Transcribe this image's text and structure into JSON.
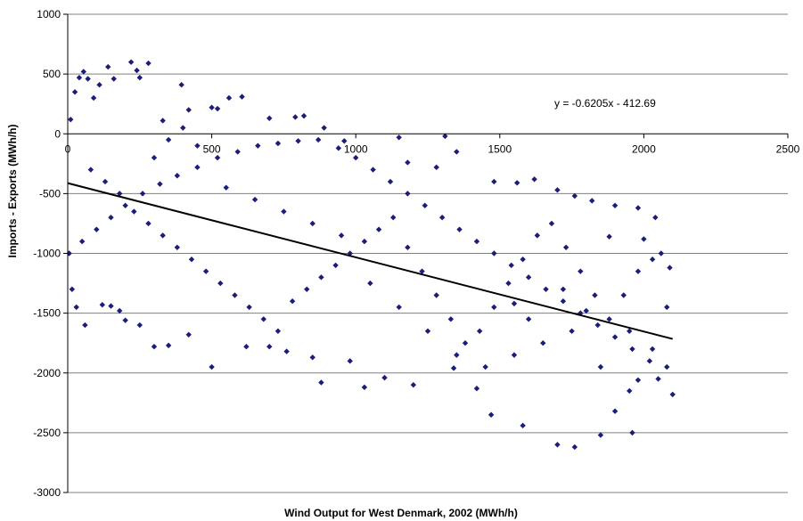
{
  "chart_data": {
    "type": "scatter",
    "title": "",
    "xlabel": "Wind Output for West Denmark, 2002 (MWh/h)",
    "ylabel": "Imports - Exports (MWh/h)",
    "xlim": [
      0,
      2500
    ],
    "ylim": [
      -3000,
      1000
    ],
    "x_ticks": [
      0,
      500,
      1000,
      1500,
      2000,
      2500
    ],
    "y_ticks": [
      1000,
      500,
      0,
      -500,
      -1000,
      -1500,
      -2000,
      -2500,
      -3000
    ],
    "x_tick_labels": [
      "0",
      "500",
      "1000",
      "1500",
      "2000",
      "2500"
    ],
    "y_tick_labels": [
      "1000",
      "500",
      "0",
      "-500",
      "-1000",
      "-1500",
      "-2000",
      "-2500",
      "-3000"
    ],
    "grid": "horizontal",
    "legend": "none",
    "marker_color": "#1c1c7a",
    "trendline_color": "#000000",
    "trendline": {
      "slope": -0.6205,
      "intercept": -412.69,
      "x_range": [
        0,
        2100
      ],
      "equation_label": "y = -0.6205x - 412.69"
    },
    "series": [
      {
        "points": [
          [
            10,
            120
          ],
          [
            25,
            350
          ],
          [
            40,
            470
          ],
          [
            55,
            520
          ],
          [
            70,
            460
          ],
          [
            90,
            300
          ],
          [
            110,
            410
          ],
          [
            140,
            560
          ],
          [
            160,
            460
          ],
          [
            220,
            600
          ],
          [
            240,
            530
          ],
          [
            250,
            470
          ],
          [
            280,
            590
          ],
          [
            330,
            110
          ],
          [
            395,
            410
          ],
          [
            420,
            200
          ],
          [
            500,
            220
          ],
          [
            520,
            210
          ],
          [
            560,
            300
          ],
          [
            605,
            310
          ],
          [
            700,
            130
          ],
          [
            790,
            140
          ],
          [
            820,
            150
          ],
          [
            890,
            50
          ],
          [
            960,
            -60
          ],
          [
            1150,
            -30
          ],
          [
            1310,
            -20
          ],
          [
            1180,
            -240
          ],
          [
            1280,
            -280
          ],
          [
            1350,
            -150
          ],
          [
            1480,
            -400
          ],
          [
            1560,
            -410
          ],
          [
            1620,
            -380
          ],
          [
            1700,
            -470
          ],
          [
            1760,
            -520
          ],
          [
            1820,
            -560
          ],
          [
            1900,
            -600
          ],
          [
            1980,
            -620
          ],
          [
            2040,
            -700
          ],
          [
            1880,
            -860
          ],
          [
            2000,
            -880
          ],
          [
            2060,
            -1000
          ],
          [
            2090,
            -1120
          ],
          [
            1550,
            -1420
          ],
          [
            1600,
            -1550
          ],
          [
            1720,
            -1300
          ],
          [
            1800,
            -1480
          ],
          [
            1950,
            -1650
          ],
          [
            2030,
            -1800
          ],
          [
            2080,
            -1950
          ],
          [
            2100,
            -2180
          ],
          [
            1980,
            -2060
          ],
          [
            1900,
            -2320
          ],
          [
            1850,
            -2520
          ],
          [
            1960,
            -2500
          ],
          [
            1700,
            -2600
          ],
          [
            1760,
            -2620
          ],
          [
            1580,
            -2440
          ],
          [
            1470,
            -2350
          ],
          [
            1420,
            -2130
          ],
          [
            1340,
            -1960
          ],
          [
            1200,
            -2100
          ],
          [
            1100,
            -2040
          ],
          [
            1030,
            -2120
          ],
          [
            980,
            -1900
          ],
          [
            880,
            -2080
          ],
          [
            850,
            -1870
          ],
          [
            760,
            -1820
          ],
          [
            700,
            -1780
          ],
          [
            620,
            -1780
          ],
          [
            500,
            -1950
          ],
          [
            420,
            -1680
          ],
          [
            350,
            -1770
          ],
          [
            300,
            -1780
          ],
          [
            250,
            -1600
          ],
          [
            200,
            -1560
          ],
          [
            180,
            -1480
          ],
          [
            150,
            -1440
          ],
          [
            120,
            -1430
          ],
          [
            60,
            -1600
          ],
          [
            30,
            -1450
          ],
          [
            15,
            -1300
          ],
          [
            5,
            -1000
          ],
          [
            50,
            -900
          ],
          [
            100,
            -800
          ],
          [
            150,
            -700
          ],
          [
            200,
            -600
          ],
          [
            260,
            -500
          ],
          [
            320,
            -420
          ],
          [
            380,
            -350
          ],
          [
            450,
            -280
          ],
          [
            520,
            -200
          ],
          [
            590,
            -150
          ],
          [
            660,
            -100
          ],
          [
            730,
            -80
          ],
          [
            800,
            -60
          ],
          [
            870,
            -50
          ],
          [
            940,
            -120
          ],
          [
            1000,
            -200
          ],
          [
            1060,
            -300
          ],
          [
            1120,
            -400
          ],
          [
            1180,
            -500
          ],
          [
            1240,
            -600
          ],
          [
            1300,
            -700
          ],
          [
            1360,
            -800
          ],
          [
            1420,
            -900
          ],
          [
            1480,
            -1000
          ],
          [
            1540,
            -1100
          ],
          [
            1600,
            -1200
          ],
          [
            1660,
            -1300
          ],
          [
            1720,
            -1400
          ],
          [
            1780,
            -1500
          ],
          [
            1840,
            -1600
          ],
          [
            1900,
            -1700
          ],
          [
            1960,
            -1800
          ],
          [
            2020,
            -1900
          ],
          [
            80,
            -300
          ],
          [
            130,
            -400
          ],
          [
            180,
            -500
          ],
          [
            230,
            -650
          ],
          [
            280,
            -750
          ],
          [
            330,
            -850
          ],
          [
            380,
            -950
          ],
          [
            430,
            -1050
          ],
          [
            480,
            -1150
          ],
          [
            530,
            -1250
          ],
          [
            580,
            -1350
          ],
          [
            630,
            -1450
          ],
          [
            680,
            -1550
          ],
          [
            730,
            -1650
          ],
          [
            780,
            -1400
          ],
          [
            830,
            -1300
          ],
          [
            880,
            -1200
          ],
          [
            930,
            -1100
          ],
          [
            980,
            -1000
          ],
          [
            1030,
            -900
          ],
          [
            1080,
            -800
          ],
          [
            1130,
            -700
          ],
          [
            1180,
            -950
          ],
          [
            1230,
            -1150
          ],
          [
            1280,
            -1350
          ],
          [
            1330,
            -1550
          ],
          [
            1380,
            -1750
          ],
          [
            1430,
            -1650
          ],
          [
            1480,
            -1450
          ],
          [
            1530,
            -1250
          ],
          [
            1580,
            -1050
          ],
          [
            1630,
            -850
          ],
          [
            1680,
            -750
          ],
          [
            1730,
            -950
          ],
          [
            1780,
            -1150
          ],
          [
            1830,
            -1350
          ],
          [
            1880,
            -1550
          ],
          [
            1930,
            -1350
          ],
          [
            1980,
            -1150
          ],
          [
            2030,
            -1050
          ],
          [
            2080,
            -1450
          ],
          [
            300,
            -200
          ],
          [
            350,
            -50
          ],
          [
            400,
            50
          ],
          [
            450,
            -100
          ],
          [
            550,
            -450
          ],
          [
            650,
            -550
          ],
          [
            750,
            -650
          ],
          [
            850,
            -750
          ],
          [
            950,
            -850
          ],
          [
            1050,
            -1250
          ],
          [
            1150,
            -1450
          ],
          [
            1250,
            -1650
          ],
          [
            1350,
            -1850
          ],
          [
            1450,
            -1950
          ],
          [
            1550,
            -1850
          ],
          [
            1650,
            -1750
          ],
          [
            1750,
            -1650
          ],
          [
            1850,
            -1950
          ],
          [
            1950,
            -2150
          ],
          [
            2050,
            -2050
          ]
        ]
      }
    ]
  }
}
